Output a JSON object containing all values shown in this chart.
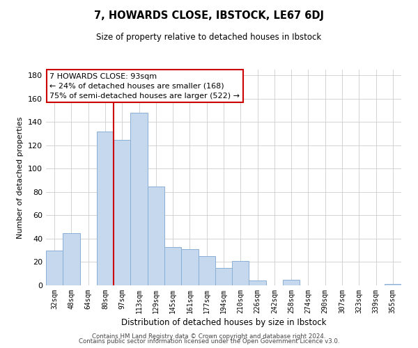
{
  "title": "7, HOWARDS CLOSE, IBSTOCK, LE67 6DJ",
  "subtitle": "Size of property relative to detached houses in Ibstock",
  "xlabel": "Distribution of detached houses by size in Ibstock",
  "ylabel": "Number of detached properties",
  "bar_labels": [
    "32sqm",
    "48sqm",
    "64sqm",
    "80sqm",
    "97sqm",
    "113sqm",
    "129sqm",
    "145sqm",
    "161sqm",
    "177sqm",
    "194sqm",
    "210sqm",
    "226sqm",
    "242sqm",
    "258sqm",
    "274sqm",
    "290sqm",
    "307sqm",
    "323sqm",
    "339sqm",
    "355sqm"
  ],
  "bar_values": [
    30,
    45,
    0,
    132,
    125,
    148,
    85,
    33,
    31,
    25,
    15,
    21,
    4,
    0,
    5,
    0,
    0,
    0,
    0,
    0,
    1
  ],
  "bar_color": "#c5d8ed",
  "bar_edge_color": "#8aafd4",
  "vline_color": "#cc0000",
  "annotation_text": "7 HOWARDS CLOSE: 93sqm\n← 24% of detached houses are smaller (168)\n75% of semi-detached houses are larger (522) →",
  "annotation_box_edgecolor": "#cc0000",
  "ylim": [
    0,
    185
  ],
  "yticks": [
    0,
    20,
    40,
    60,
    80,
    100,
    120,
    140,
    160,
    180
  ],
  "footer1": "Contains HM Land Registry data © Crown copyright and database right 2024.",
  "footer2": "Contains public sector information licensed under the Open Government Licence v3.0.",
  "background_color": "#ffffff",
  "grid_color": "#cccccc"
}
